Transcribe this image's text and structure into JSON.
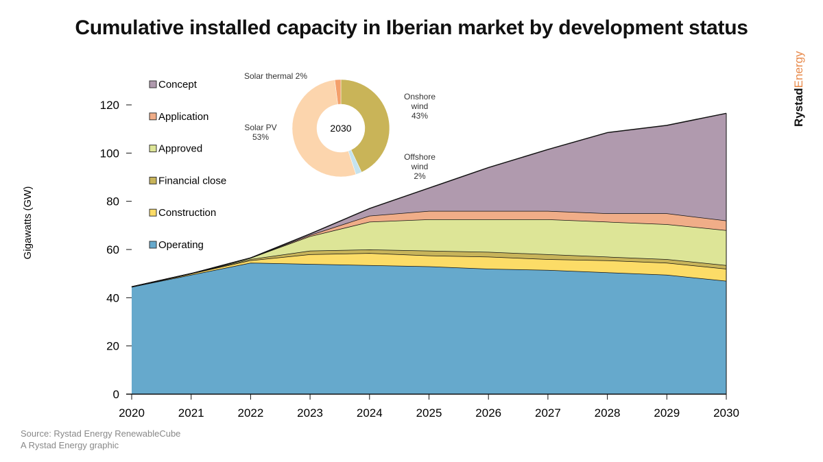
{
  "title": "Cumulative installed capacity in Iberian market by development status",
  "footer": {
    "source": "Source: Rystad Energy RenewableCube",
    "credit": "A Rystad Energy graphic"
  },
  "logo": {
    "part1": "Rystad",
    "part2": "Energy"
  },
  "chart_data": [
    {
      "type": "area",
      "stacked": true,
      "ylabel": "Gigawatts (GW)",
      "xlabel": "",
      "ylim": [
        0,
        120
      ],
      "yticks": [
        0,
        20,
        40,
        60,
        80,
        100,
        120
      ],
      "x": [
        "2020",
        "2021",
        "2022",
        "2023",
        "2024",
        "2025",
        "2026",
        "2027",
        "2028",
        "2029",
        "2030"
      ],
      "grid": false,
      "legend": "top-left",
      "series": [
        {
          "name": "Operating",
          "color": "#66a9cc",
          "values": [
            44.5,
            49.5,
            54.5,
            54,
            53.5,
            53,
            52,
            51.5,
            50.5,
            49.5,
            47
          ]
        },
        {
          "name": "Construction",
          "color": "#fcdc67",
          "values": [
            0,
            0.5,
            1,
            4,
            5,
            4.5,
            5,
            4.5,
            5,
            5,
            5
          ]
        },
        {
          "name": "Financial close",
          "color": "#c8b45a",
          "values": [
            0,
            0,
            0.5,
            1.5,
            1.5,
            2,
            2,
            2,
            1.5,
            1.5,
            1.5
          ]
        },
        {
          "name": "Approved",
          "color": "#dde597",
          "values": [
            0,
            0,
            0.5,
            6,
            11.5,
            13,
            13.5,
            14.5,
            14.5,
            14.5,
            14.5
          ]
        },
        {
          "name": "Application",
          "color": "#f0ad88",
          "values": [
            0,
            0,
            0,
            0.5,
            2.5,
            3.5,
            3.5,
            3.5,
            3.5,
            4.5,
            4
          ]
        },
        {
          "name": "Concept",
          "color": "#b09aae",
          "values": [
            0,
            0,
            0,
            0.5,
            3,
            9.5,
            18,
            25.5,
            33.5,
            36.5,
            44.5
          ]
        }
      ]
    },
    {
      "type": "pie",
      "donut": true,
      "center_label": "2030",
      "slices": [
        {
          "label": "Onshore wind",
          "value": 43,
          "pct": "43%",
          "color": "#c9b458"
        },
        {
          "label": "Offshore wind",
          "value": 2,
          "pct": "2%",
          "color": "#c5e3ef"
        },
        {
          "label": "Solar PV",
          "value": 53,
          "pct": "53%",
          "color": "#fcd5ad"
        },
        {
          "label": "Solar thermal",
          "value": 2,
          "pct": "2%",
          "color": "#f4a06b"
        }
      ]
    }
  ]
}
